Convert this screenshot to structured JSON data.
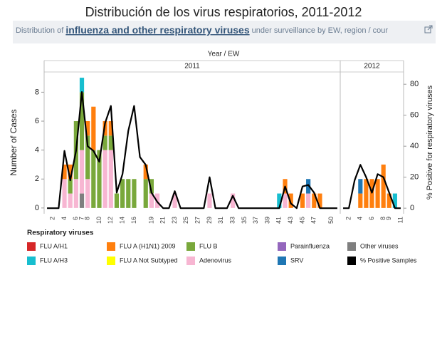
{
  "header": {
    "title": "Distribución de los virus respiratorios, 2011-2012",
    "subtitle_before": "Distribution of ",
    "subtitle_link": "influenza and other respiratory viruses",
    "subtitle_after": " under surveillance by EW, region / cour"
  },
  "chart_data": {
    "type": "stacked-bar-line",
    "x_label": "Year / EW",
    "y_label": "Number of Cases",
    "y2_label": "% Positive for respiratory viruses",
    "legend_title": "Respiratory viruses",
    "ylim": [
      -0.4,
      9.3
    ],
    "yticks": [
      0,
      2,
      4,
      6,
      8
    ],
    "y2lim": [
      -3.6,
      87
    ],
    "y2ticks": [
      0,
      20,
      40,
      60,
      80
    ],
    "panels": [
      {
        "label": "2011",
        "categories": [
          null,
          "2",
          null,
          "4",
          null,
          "6",
          "7",
          "8",
          null,
          "10",
          null,
          "12",
          null,
          "14",
          null,
          "16",
          null,
          null,
          "19",
          null,
          "21",
          null,
          "23",
          null,
          "25",
          null,
          "27",
          null,
          "29",
          null,
          "31",
          null,
          "33",
          null,
          "35",
          null,
          "37",
          null,
          "39",
          null,
          "41",
          null,
          "43",
          null,
          "45",
          null,
          "47",
          null,
          null,
          "50",
          null
        ]
      },
      {
        "label": "2012",
        "categories": [
          null,
          "2",
          null,
          "4",
          null,
          "6",
          null,
          "8",
          "9",
          null,
          "11"
        ]
      }
    ],
    "series": [
      {
        "name": "Other viruses",
        "color": "#7f7f7f",
        "values": [
          0,
          0,
          0,
          0,
          0,
          0,
          1,
          0,
          0,
          0,
          0,
          0,
          0,
          0,
          0,
          0,
          0,
          0,
          0,
          0,
          0,
          0,
          0,
          0,
          0,
          0,
          0,
          0,
          0,
          0,
          0,
          0,
          0,
          0,
          0,
          0,
          0,
          0,
          0,
          0,
          0,
          0,
          0,
          0,
          0,
          0,
          0,
          0,
          0,
          0,
          0,
          0,
          0,
          0,
          0,
          0,
          0,
          0,
          0,
          0,
          0,
          0
        ]
      },
      {
        "name": "Adenovirus",
        "color": "#f7b6d2",
        "values": [
          0,
          0,
          0,
          2,
          1,
          2,
          3,
          2,
          0,
          0,
          4,
          4,
          0,
          0,
          0,
          0,
          0,
          0,
          1,
          1,
          0,
          0,
          1,
          0,
          0,
          0,
          0,
          0,
          1,
          0,
          0,
          0,
          1,
          0,
          0,
          0,
          0,
          0,
          0,
          0,
          0,
          1,
          0,
          0,
          0,
          1,
          0,
          0,
          0,
          0,
          0,
          0,
          0,
          0,
          0,
          0,
          0,
          0,
          0,
          0,
          0,
          0
        ]
      },
      {
        "name": "FLU B",
        "color": "#79a83b",
        "values": [
          0,
          0,
          0,
          0,
          1,
          4,
          4,
          3,
          4,
          4,
          1,
          1,
          1,
          2,
          2,
          2,
          0,
          2,
          1,
          0,
          0,
          0,
          0,
          0,
          0,
          0,
          0,
          0,
          0,
          0,
          0,
          0,
          0,
          0,
          0,
          0,
          0,
          0,
          0,
          0,
          0,
          0,
          0,
          0,
          0,
          0,
          0,
          0,
          0,
          0,
          0,
          0,
          0,
          0,
          0,
          0,
          0,
          0,
          0,
          0,
          0,
          0
        ]
      },
      {
        "name": "FLU A (H1N1) 2009",
        "color": "#ff7f0e",
        "values": [
          0,
          0,
          0,
          1,
          1,
          0,
          0,
          1,
          3,
          0,
          1,
          1,
          0,
          0,
          0,
          0,
          0,
          1,
          0,
          0,
          0,
          0,
          0,
          0,
          0,
          0,
          0,
          0,
          0,
          0,
          0,
          0,
          0,
          0,
          0,
          0,
          0,
          0,
          0,
          0,
          0,
          1,
          1,
          0,
          1,
          0,
          1,
          1,
          0,
          0,
          0,
          0,
          0,
          0,
          1,
          2,
          2,
          2,
          3,
          1,
          0,
          0
        ]
      },
      {
        "name": "SRV",
        "color": "#1f77b4",
        "values": [
          0,
          0,
          0,
          0,
          0,
          0,
          0,
          0,
          0,
          0,
          0,
          0,
          0,
          0,
          0,
          0,
          0,
          0,
          0,
          0,
          0,
          0,
          0,
          0,
          0,
          0,
          0,
          0,
          0,
          0,
          0,
          0,
          0,
          0,
          0,
          0,
          0,
          0,
          0,
          0,
          0,
          0,
          0,
          0,
          0,
          1,
          0,
          0,
          0,
          0,
          0,
          0,
          0,
          0,
          1,
          0,
          0,
          0,
          0,
          0,
          0,
          0
        ]
      },
      {
        "name": "FLU A/H3",
        "color": "#17becf",
        "values": [
          0,
          0,
          0,
          0,
          0,
          0,
          1,
          0,
          0,
          0,
          0,
          0,
          0,
          0,
          0,
          0,
          0,
          0,
          0,
          0,
          0,
          0,
          0,
          0,
          0,
          0,
          0,
          0,
          0,
          0,
          0,
          0,
          0,
          0,
          0,
          0,
          0,
          0,
          0,
          0,
          1,
          0,
          0,
          0,
          0,
          0,
          0,
          0,
          0,
          0,
          0,
          0,
          0,
          0,
          0,
          0,
          0,
          0,
          0,
          0,
          1,
          0
        ]
      },
      {
        "name": "FLU A/H1",
        "color": "#d62728",
        "values": [
          0,
          0,
          0,
          0,
          0,
          0,
          0,
          0,
          0,
          0,
          0,
          0,
          0,
          0,
          0,
          0,
          0,
          0,
          0,
          0,
          0,
          0,
          0,
          0,
          0,
          0,
          0,
          0,
          0,
          0,
          0,
          0,
          0,
          0,
          0,
          0,
          0,
          0,
          0,
          0,
          0,
          0,
          0,
          0,
          0,
          0,
          0,
          0,
          0,
          0,
          0,
          0,
          0,
          0,
          0,
          0,
          0,
          0,
          0,
          0,
          0,
          0
        ]
      },
      {
        "name": "Parainfluenza",
        "color": "#9467bd",
        "values": [
          0,
          0,
          0,
          0,
          0,
          0,
          0,
          0,
          0,
          0,
          0,
          0,
          0,
          0,
          0,
          0,
          0,
          0,
          0,
          0,
          0,
          0,
          0,
          0,
          0,
          0,
          0,
          0,
          0,
          0,
          0,
          0,
          0,
          0,
          0,
          0,
          0,
          0,
          0,
          0,
          0,
          0,
          0,
          0,
          0,
          0,
          0,
          0,
          0,
          0,
          0,
          0,
          0,
          0,
          0,
          0,
          0,
          0,
          0,
          0,
          0,
          0
        ]
      },
      {
        "name": "FLU A Not Subtyped",
        "color": "#ffff00",
        "values": [
          0,
          0,
          0,
          0,
          0,
          0,
          0,
          0,
          0,
          0,
          0,
          0,
          0,
          0,
          0,
          0,
          0,
          0,
          0,
          0,
          0,
          0,
          0,
          0,
          0,
          0,
          0,
          0,
          0,
          0,
          0,
          0,
          0,
          0,
          0,
          0,
          0,
          0,
          0,
          0,
          0,
          0,
          0,
          0,
          0,
          0,
          0,
          0,
          0,
          0,
          0,
          0,
          0,
          0,
          0,
          0,
          0,
          0,
          0,
          0,
          0,
          0
        ]
      },
      {
        "name": "% Positive Samples",
        "color": "#000000",
        "type": "line",
        "axis": "y2",
        "values": [
          0,
          0,
          0,
          37,
          18,
          37,
          75,
          40,
          37,
          30,
          55,
          66,
          10,
          22,
          50,
          66,
          33,
          28,
          10,
          4,
          0,
          0,
          11,
          0,
          0,
          0,
          0,
          0,
          20,
          0,
          0,
          0,
          8,
          0,
          0,
          0,
          0,
          0,
          0,
          0,
          0,
          14,
          3,
          0,
          14,
          15,
          10,
          0,
          0,
          0,
          0,
          0,
          0,
          18,
          28,
          20,
          10,
          22,
          20,
          10,
          0,
          0
        ]
      }
    ]
  }
}
